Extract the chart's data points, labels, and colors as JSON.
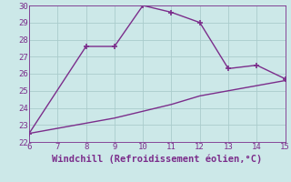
{
  "xlabel": "Windchill (Refroidissement éolien,°C)",
  "xlim": [
    6,
    15
  ],
  "ylim": [
    22,
    30
  ],
  "xticks": [
    6,
    7,
    8,
    9,
    10,
    11,
    12,
    13,
    14,
    15
  ],
  "yticks": [
    22,
    23,
    24,
    25,
    26,
    27,
    28,
    29,
    30
  ],
  "line1_x": [
    6,
    8,
    9,
    10,
    11,
    12,
    13,
    14,
    15
  ],
  "line1_y": [
    22.5,
    27.6,
    27.6,
    30.0,
    29.6,
    29.0,
    26.3,
    26.5,
    25.7
  ],
  "line2_x": [
    6,
    7,
    8,
    9,
    10,
    11,
    12,
    13,
    14,
    15
  ],
  "line2_y": [
    22.5,
    22.8,
    23.1,
    23.4,
    23.8,
    24.2,
    24.7,
    25.0,
    25.3,
    25.6
  ],
  "line_color": "#7B2D8B",
  "bg_color": "#cce8e8",
  "grid_color": "#aacccc",
  "marker": "+",
  "markersize": 5,
  "linewidth": 1.0,
  "xlabel_fontsize": 7.5,
  "tick_fontsize": 6.5
}
